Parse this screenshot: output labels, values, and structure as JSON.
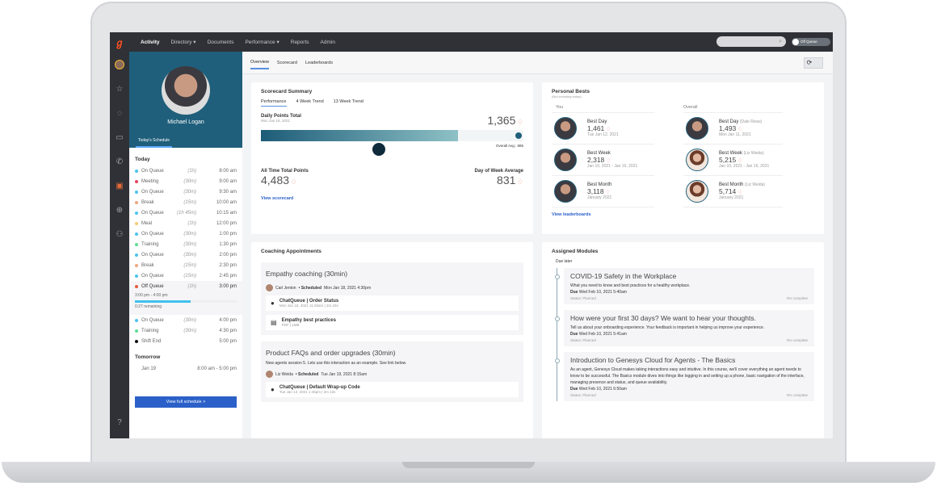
{
  "nav": {
    "items": [
      "Activity",
      "Directory",
      "Documents",
      "Performance",
      "Reports",
      "Admin"
    ],
    "status": "Off Queue"
  },
  "profile": {
    "name": "Michael Logan",
    "tab": "Today's Schedule"
  },
  "schedule": {
    "today_label": "Today",
    "items": [
      {
        "label": "On Queue",
        "dur": "(1h)",
        "time": "8:00 am",
        "color": "#4cc3ef"
      },
      {
        "label": "Meeting",
        "dur": "(30m)",
        "time": "9:00 am",
        "color": "#e8445e"
      },
      {
        "label": "On Queue",
        "dur": "(30m)",
        "time": "9:30 am",
        "color": "#4cc3ef"
      },
      {
        "label": "Break",
        "dur": "(15m)",
        "time": "10:00 am",
        "color": "#f0a77e"
      },
      {
        "label": "On Queue",
        "dur": "(1h 45m)",
        "time": "10:15 am",
        "color": "#4cc3ef"
      },
      {
        "label": "Meal",
        "dur": "(1h)",
        "time": "12:00 pm",
        "color": "#f5cc72"
      },
      {
        "label": "On Queue",
        "dur": "(30m)",
        "time": "1:00 pm",
        "color": "#4cc3ef"
      },
      {
        "label": "Training",
        "dur": "(30m)",
        "time": "1:30 pm",
        "color": "#5ddf94"
      },
      {
        "label": "On Queue",
        "dur": "(30m)",
        "time": "2:00 pm",
        "color": "#4cc3ef"
      },
      {
        "label": "Break",
        "dur": "(15m)",
        "time": "2:30 pm",
        "color": "#f0a77e"
      },
      {
        "label": "On Queue",
        "dur": "(15m)",
        "time": "2:45 pm",
        "color": "#4cc3ef"
      }
    ],
    "current": {
      "label": "Off Queue",
      "dur": "(1h)",
      "time": "3:00 pm",
      "color": "#e8593a",
      "range": "3:00 pm - 4:00 pm",
      "progress": 0.55,
      "remaining": "0:27 remaining"
    },
    "after": [
      {
        "label": "On Queue",
        "dur": "(30m)",
        "time": "4:00 pm",
        "color": "#4cc3ef"
      },
      {
        "label": "Training",
        "dur": "(30m)",
        "time": "4:30 pm",
        "color": "#5ddf94"
      },
      {
        "label": "Shift End",
        "dur": "",
        "time": "5:00 pm",
        "color": "#111"
      }
    ],
    "tomorrow_label": "Tomorrow",
    "tomorrow_date": "Jan 19",
    "tomorrow_time": "8:00 am - 5:00 pm",
    "button": "View full schedule >"
  },
  "tabs": [
    "Overview",
    "Scorecard",
    "Leaderboards"
  ],
  "scorecard": {
    "title": "Scorecard Summary",
    "tabs": [
      "Performance",
      "4 Week Trend",
      "13 Week Trend"
    ],
    "daily_label": "Daily Points Total",
    "daily_date": "Mon Jan 18, 2021",
    "daily_value": "1,365",
    "progress": 0.75,
    "overall_avg": "Overall Avg.: 885",
    "all_time_label": "All Time Total Points",
    "all_time_value": "4,483",
    "dow_label": "Day of Week Average",
    "dow_value": "831",
    "link": "View scorecard"
  },
  "bests": {
    "title": "Personal Bests",
    "subtitle": "(Not including today)",
    "you_label": "You",
    "overall_label": "Overall",
    "you": [
      {
        "label": "Best Day",
        "value": "1,461",
        "date": "Tue Jan 12, 2021"
      },
      {
        "label": "Best Week",
        "value": "2,318",
        "date": "Jan 10, 2021 - Jan 16, 2021"
      },
      {
        "label": "Best Month",
        "value": "3,118",
        "date": "January 2021"
      }
    ],
    "overall": [
      {
        "label": "Best Day",
        "who": "(Dale Rivas)",
        "value": "1,493",
        "date": "Mon Jan 11, 2021"
      },
      {
        "label": "Best Week",
        "who": "(Liz Weida)",
        "value": "5,215",
        "date": "Jan 10, 2021 - Jan 16, 2021"
      },
      {
        "label": "Best Month",
        "who": "(Liz Weida)",
        "value": "5,714",
        "date": "January 2021"
      }
    ],
    "link": "View leaderboards"
  },
  "coaching": {
    "title": "Coaching Appointments",
    "items": [
      {
        "title": "Empathy coaching (30min)",
        "person": "Carl Jenton",
        "sched": "• Scheduled",
        "when": "Mon Jan 18, 2021 4:30pm",
        "attachments": [
          {
            "name": "ChatQueue | Order Status",
            "meta": "Mon Jan 18, 2021 11:20am | 2m 22s",
            "icon": "chat-icon"
          },
          {
            "name": "Empathy best practices",
            "meta": "PDF | 1MB",
            "icon": "document-icon"
          }
        ]
      },
      {
        "title": "Product FAQs and order upgrades (30min)",
        "desc": "New agents session 5. Lets use this interaction as an example. See link below.",
        "person": "Liz Weida",
        "sched": "• Scheduled",
        "when": "Tue Jan 19, 2021 8:15am",
        "attachments": [
          {
            "name": "ChatQueue | Default Wrap-up Code",
            "meta": "Tue Jan 12, 2021 1:45pm | 2m 13s",
            "icon": "chat-icon"
          }
        ]
      }
    ]
  },
  "modules": {
    "title": "Assigned Modules",
    "group": "Due later",
    "items": [
      {
        "title": "COVID-19 Safety in the Workplace",
        "desc": "What you need to know and best practices for a healthy workplace.",
        "due": "Due",
        "due_date": "Wed Feb 10, 2021 5:40am",
        "status": "Status: Planned",
        "complete": "0% complete"
      },
      {
        "title": "How were your first 30 days? We want to hear your thoughts.",
        "desc": "Tell us about your onboarding experience. Your feedback is important in helping us improve your experience.",
        "due": "Due",
        "due_date": "Wed Feb 10, 2021 5:41am",
        "status": "Status: Planned",
        "complete": "0% complete"
      },
      {
        "title": "Introduction to Genesys Cloud for Agents - The Basics",
        "desc": "As an agent, Genesys Cloud makes taking interactions easy and intuitive. In this course, we'll cover everything an agent needs to know to be successful. The Basics module dives into things like logging in and setting up a phone, basic navigation of the interface, managing presence and status, and queue availability.",
        "due": "Due",
        "due_date": "Wed Feb 10, 2021 6:50am",
        "status": "Status: Planned",
        "complete": "0% complete"
      }
    ]
  }
}
